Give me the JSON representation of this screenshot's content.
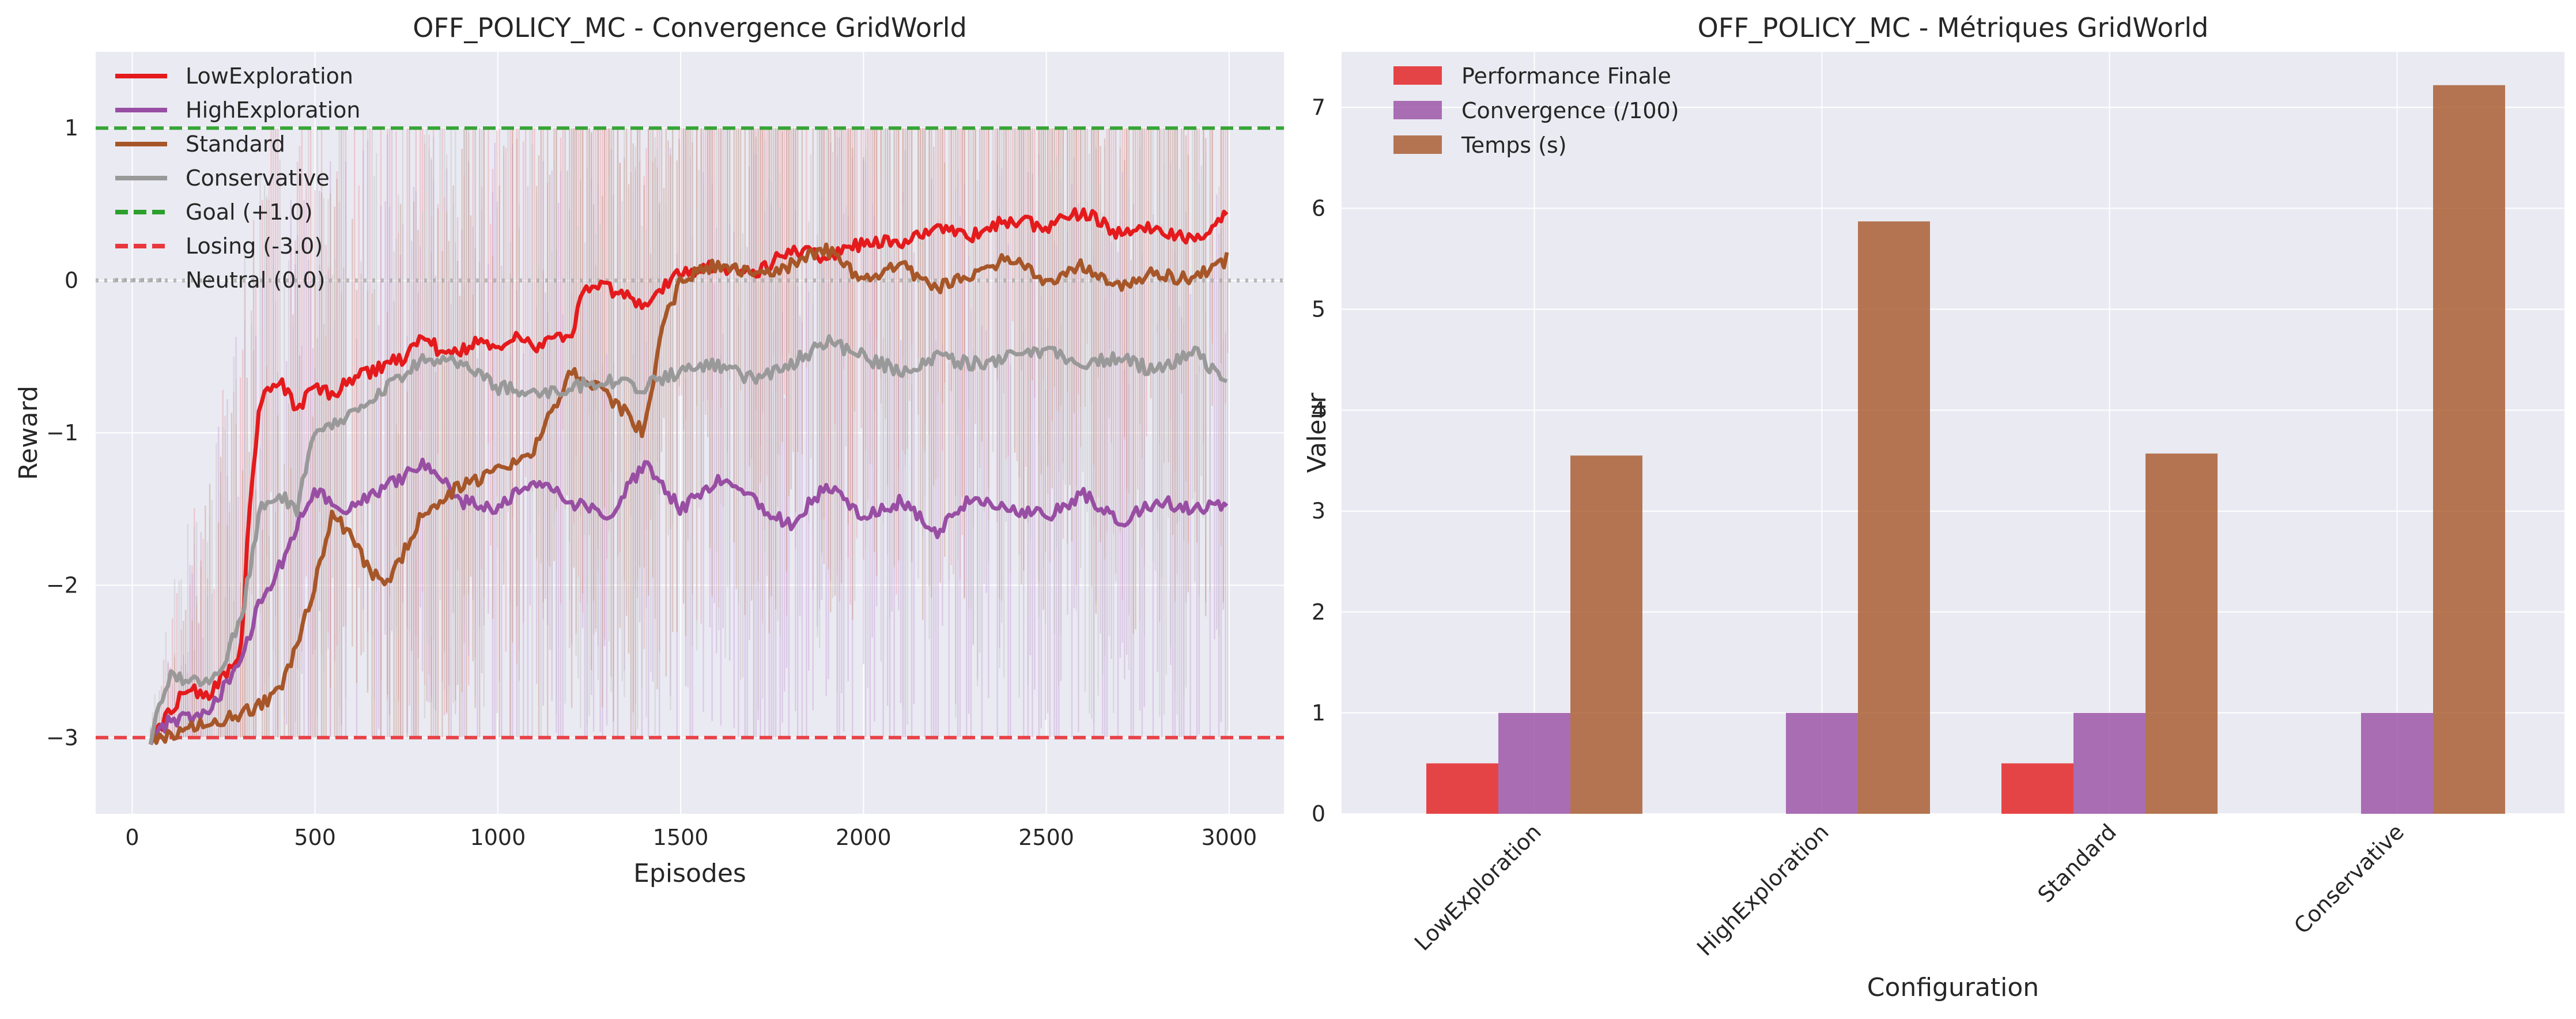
{
  "chart_data": [
    {
      "type": "line",
      "title": "OFF_POLICY_MC - Convergence GridWorld",
      "xlabel": "Episodes",
      "ylabel": "Reward",
      "xlim": [
        -100,
        3150
      ],
      "ylim": [
        -3.5,
        1.5
      ],
      "xticks": [
        0,
        500,
        1000,
        1500,
        2000,
        2500,
        3000
      ],
      "yticks": [
        -3,
        -2,
        -1,
        0,
        1
      ],
      "ytick_labels": [
        "−3",
        "−2",
        "−1",
        "0",
        "1"
      ],
      "grid": true,
      "legend_position": "top-left",
      "series": [
        {
          "name": "LowExploration",
          "color": "#e41a1c",
          "x": [
            50,
            100,
            150,
            200,
            250,
            300,
            320,
            350,
            400,
            450,
            500,
            550,
            600,
            650,
            700,
            750,
            800,
            850,
            900,
            950,
            1000,
            1050,
            1100,
            1150,
            1200,
            1230,
            1300,
            1400,
            1500,
            1600,
            1700,
            1800,
            1900,
            2000,
            2100,
            2200,
            2300,
            2400,
            2500,
            2600,
            2700,
            2800,
            2900,
            3000
          ],
          "y": [
            -3.0,
            -2.85,
            -2.65,
            -2.75,
            -2.6,
            -2.4,
            -1.5,
            -0.8,
            -0.65,
            -0.85,
            -0.7,
            -0.75,
            -0.65,
            -0.6,
            -0.55,
            -0.5,
            -0.35,
            -0.5,
            -0.45,
            -0.4,
            -0.45,
            -0.35,
            -0.45,
            -0.35,
            -0.4,
            -0.05,
            -0.05,
            -0.15,
            0.05,
            0.1,
            0.05,
            0.2,
            0.15,
            0.25,
            0.25,
            0.35,
            0.3,
            0.4,
            0.35,
            0.45,
            0.3,
            0.35,
            0.25,
            0.45
          ]
        },
        {
          "name": "HighExploration",
          "color": "#984ea3",
          "x": [
            50,
            100,
            200,
            300,
            350,
            400,
            450,
            500,
            600,
            700,
            800,
            900,
            1000,
            1100,
            1200,
            1300,
            1400,
            1500,
            1600,
            1700,
            1800,
            1900,
            2000,
            2100,
            2200,
            2300,
            2400,
            2500,
            2600,
            2700,
            2800,
            2900,
            3000
          ],
          "y": [
            -3.0,
            -2.9,
            -2.85,
            -2.5,
            -2.1,
            -1.9,
            -1.6,
            -1.4,
            -1.5,
            -1.35,
            -1.2,
            -1.45,
            -1.5,
            -1.3,
            -1.45,
            -1.55,
            -1.2,
            -1.5,
            -1.3,
            -1.45,
            -1.6,
            -1.35,
            -1.55,
            -1.45,
            -1.65,
            -1.4,
            -1.5,
            -1.55,
            -1.4,
            -1.6,
            -1.45,
            -1.5,
            -1.45
          ]
        },
        {
          "name": "Standard",
          "color": "#a65628",
          "x": [
            50,
            100,
            200,
            300,
            400,
            450,
            500,
            550,
            600,
            650,
            700,
            800,
            900,
            1000,
            1100,
            1150,
            1200,
            1300,
            1400,
            1450,
            1500,
            1600,
            1700,
            1800,
            1900,
            2000,
            2100,
            2200,
            2300,
            2400,
            2500,
            2600,
            2700,
            2800,
            2900,
            3000
          ],
          "y": [
            -3.0,
            -3.0,
            -2.9,
            -2.85,
            -2.7,
            -2.4,
            -2.0,
            -1.5,
            -1.7,
            -1.9,
            -2.0,
            -1.5,
            -1.35,
            -1.25,
            -1.1,
            -0.85,
            -0.6,
            -0.75,
            -1.0,
            -0.3,
            0.0,
            0.1,
            0.05,
            0.1,
            0.2,
            0.0,
            0.1,
            -0.05,
            0.05,
            0.15,
            0.0,
            0.1,
            -0.05,
            0.05,
            0.0,
            0.15
          ]
        },
        {
          "name": "Conservative",
          "color": "#999999",
          "x": [
            50,
            100,
            200,
            250,
            300,
            350,
            400,
            450,
            500,
            550,
            600,
            700,
            800,
            900,
            1000,
            1100,
            1200,
            1300,
            1400,
            1500,
            1600,
            1700,
            1800,
            1900,
            2000,
            2100,
            2200,
            2300,
            2400,
            2500,
            2600,
            2700,
            2800,
            2900,
            3000
          ],
          "y": [
            -3.0,
            -2.6,
            -2.65,
            -2.5,
            -2.2,
            -1.5,
            -1.4,
            -1.5,
            -1.0,
            -0.95,
            -0.85,
            -0.7,
            -0.5,
            -0.55,
            -0.7,
            -0.75,
            -0.7,
            -0.65,
            -0.7,
            -0.6,
            -0.55,
            -0.65,
            -0.55,
            -0.4,
            -0.5,
            -0.6,
            -0.5,
            -0.55,
            -0.5,
            -0.45,
            -0.55,
            -0.5,
            -0.6,
            -0.45,
            -0.7
          ]
        }
      ],
      "reference_lines": [
        {
          "name": "Goal (+1.0)",
          "y": 1.0,
          "color": "#2ca02c",
          "style": "dashed"
        },
        {
          "name": "Losing (-3.0)",
          "y": -3.0,
          "color": "#e8383d",
          "style": "dashed"
        },
        {
          "name": "Neutral (0.0)",
          "y": 0.0,
          "color": "#aaaaaa",
          "style": "dotted"
        }
      ]
    },
    {
      "type": "bar",
      "title": "OFF_POLICY_MC - Métriques GridWorld",
      "xlabel": "Configuration",
      "ylabel": "Valeur",
      "categories": [
        "LowExploration",
        "HighExploration",
        "Standard",
        "Conservative"
      ],
      "ylim": [
        0,
        7.55
      ],
      "yticks": [
        0,
        1,
        2,
        3,
        4,
        5,
        6,
        7
      ],
      "grid": true,
      "legend_position": "top-left",
      "series": [
        {
          "name": "Performance Finale",
          "color": "#e41a1c",
          "values": [
            0.5,
            0.0,
            0.5,
            0.0
          ]
        },
        {
          "name": "Convergence (/100)",
          "color": "#984ea3",
          "values": [
            1.0,
            1.0,
            1.0,
            1.0
          ]
        },
        {
          "name": "Temps (s)",
          "color": "#a65628",
          "values": [
            3.55,
            5.87,
            3.57,
            7.22
          ]
        }
      ]
    }
  ]
}
